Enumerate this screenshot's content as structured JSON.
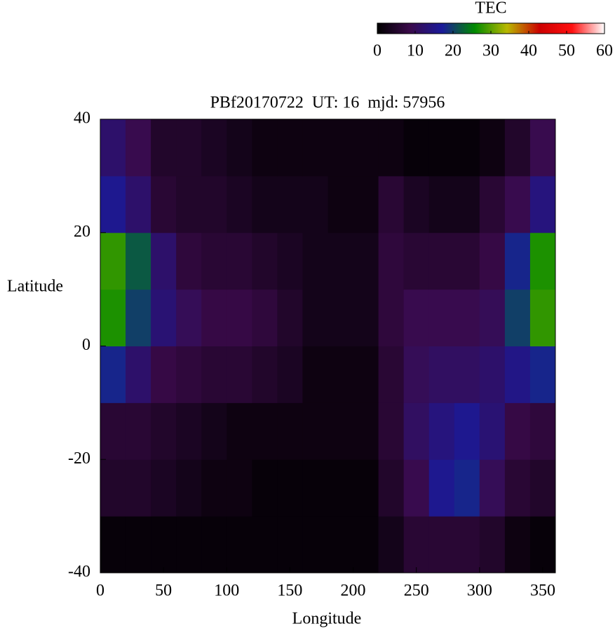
{
  "chart_data": {
    "type": "heatmap",
    "title": "PBf20170722  UT: 16  mjd: 57956",
    "x_label": "Longitude",
    "y_label": "Latitude",
    "x": [
      10,
      30,
      50,
      70,
      90,
      110,
      130,
      150,
      170,
      190,
      210,
      230,
      250,
      270,
      290,
      310,
      330,
      350
    ],
    "y": [
      -35,
      -25,
      -15,
      -5,
      5,
      15,
      25,
      35
    ],
    "values": [
      [
        1,
        1,
        1,
        1,
        1,
        1,
        1,
        1,
        1,
        1,
        1,
        3,
        6,
        6,
        6,
        5,
        2,
        1
      ],
      [
        5,
        5,
        4,
        3,
        2,
        2,
        1,
        1,
        1,
        1,
        1,
        5,
        9,
        16,
        18,
        10,
        6,
        5
      ],
      [
        6,
        6,
        5,
        4,
        3,
        2,
        2,
        2,
        2,
        2,
        2,
        6,
        11,
        14,
        16,
        13,
        8,
        7
      ],
      [
        18,
        12,
        8,
        7,
        6,
        6,
        5,
        4,
        2,
        2,
        2,
        6,
        10,
        11,
        11,
        12,
        15,
        18
      ],
      [
        27,
        20,
        13,
        10,
        8,
        8,
        7,
        5,
        3,
        3,
        3,
        7,
        9,
        9,
        9,
        10,
        20,
        28
      ],
      [
        28,
        22,
        12,
        7,
        6,
        6,
        5,
        4,
        3,
        3,
        3,
        7,
        6,
        6,
        6,
        8,
        18,
        27
      ],
      [
        16,
        12,
        6,
        5,
        5,
        4,
        3,
        3,
        3,
        2,
        2,
        6,
        4,
        3,
        3,
        6,
        9,
        14
      ],
      [
        12,
        9,
        5,
        5,
        4,
        3,
        2,
        2,
        2,
        2,
        2,
        2,
        1,
        1,
        1,
        2,
        5,
        9
      ]
    ],
    "xlim": [
      0,
      360
    ],
    "xticks": [
      0,
      50,
      100,
      150,
      200,
      250,
      300,
      350
    ],
    "ylim": [
      -40,
      40
    ],
    "yticks": [
      -40,
      -20,
      0,
      20,
      40
    ],
    "colorbar": {
      "label": "TEC",
      "lim": [
        0,
        60
      ],
      "ticks": [
        0,
        10,
        20,
        30,
        40,
        50,
        60
      ],
      "colormap": [
        "#000000",
        "#3a0a4a",
        "#1a1a9a",
        "#008a00",
        "#b8b800",
        "#cc0000",
        "#ff1010",
        "#ffffff"
      ]
    }
  }
}
